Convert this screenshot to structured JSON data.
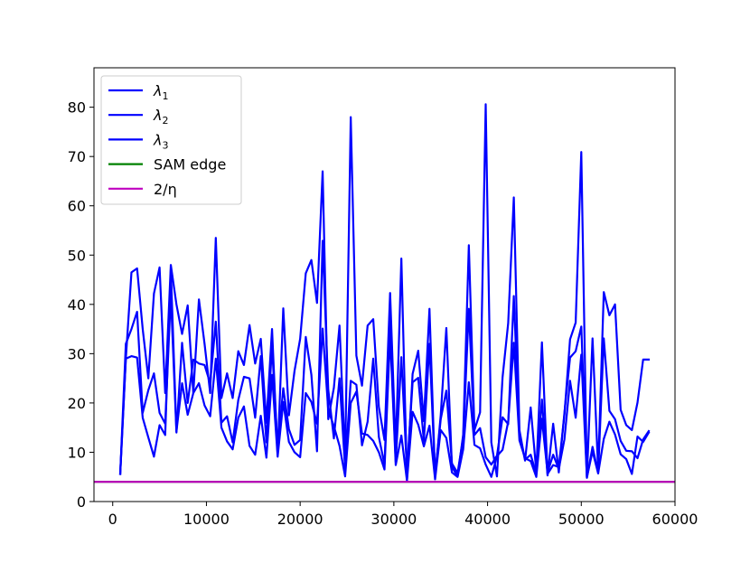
{
  "chart_data": {
    "type": "line",
    "xlim": [
      -2000,
      60000
    ],
    "ylim": [
      0,
      88
    ],
    "xticks": [
      0,
      10000,
      20000,
      30000,
      40000,
      50000,
      60000
    ],
    "xtick_labels": [
      "0",
      "10000",
      "20000",
      "30000",
      "40000",
      "50000",
      "60000"
    ],
    "yticks": [
      0,
      10,
      20,
      30,
      40,
      50,
      60,
      70,
      80
    ],
    "ytick_labels": [
      "0",
      "10",
      "20",
      "30",
      "40",
      "50",
      "60",
      "70",
      "80"
    ],
    "grid": false,
    "legend_position": "top-left",
    "legend": [
      {
        "base": "λ",
        "sub": "1",
        "color": "#0000ff"
      },
      {
        "base": "λ",
        "sub": "2",
        "color": "#0000ff"
      },
      {
        "base": "λ",
        "sub": "3",
        "color": "#0000ff"
      },
      {
        "base": "SAM edge",
        "sub": "",
        "color": "#008000"
      },
      {
        "base": "2/η",
        "sub": "",
        "color": "#bf00bf"
      }
    ],
    "x": [
      800,
      1400,
      2000,
      2600,
      3200,
      3800,
      4400,
      5000,
      5600,
      6200,
      6800,
      7400,
      8000,
      8600,
      9200,
      9800,
      10400,
      11000,
      11600,
      12200,
      12800,
      13400,
      14000,
      14600,
      15200,
      15800,
      16400,
      17000,
      17600,
      18200,
      18800,
      19400,
      20000,
      20600,
      21200,
      21800,
      22400,
      23000,
      23600,
      24200,
      24800,
      25400,
      26000,
      26600,
      27200,
      27800,
      28400,
      29000,
      29600,
      30200,
      30800,
      31400,
      32000,
      32600,
      33200,
      33800,
      34400,
      35000,
      35600,
      36200,
      36800,
      37400,
      38000,
      38600,
      39200,
      39800,
      40400,
      41000,
      41600,
      42200,
      42800,
      43400,
      44000,
      44600,
      45200,
      45800,
      46400,
      47000,
      47600,
      48200,
      48800,
      49400,
      50000,
      50600,
      51200,
      51800,
      52400,
      53000,
      53600,
      54200,
      54800,
      55400,
      56000,
      56600,
      57200
    ],
    "series": [
      {
        "name": "",
        "color": "#0000ff",
        "values": [
          5.6,
          29,
          46.5,
          47.3,
          35,
          25,
          42.2,
          47.5,
          22,
          48,
          40,
          34,
          39.8,
          22,
          41,
          32,
          22,
          53.5,
          21,
          26,
          21,
          30.5,
          27.7,
          35.8,
          28,
          33,
          16,
          35,
          9.4,
          39.2,
          17.5,
          26.5,
          33,
          46.3,
          49,
          40.3,
          67,
          16.7,
          23.1,
          35.7,
          8.6,
          78,
          29.6,
          23.5,
          35.7,
          37,
          19.2,
          12.5,
          42.3,
          10.5,
          49.3,
          4.5,
          25.9,
          30.6,
          16.3,
          39.1,
          5,
          17.5,
          35.2,
          7,
          5.1,
          13.6,
          52,
          14.5,
          18.1,
          80.6,
          12,
          5.1,
          25.2,
          36.2,
          61.7,
          14.5,
          8.3,
          19.1,
          6.1,
          32.3,
          5.6,
          7.4,
          7,
          17.6,
          32.9,
          36.3,
          70.9,
          5,
          33.1,
          6.4,
          42.5,
          37.8,
          40,
          18.6,
          15.5,
          14.5,
          20.1,
          28.8,
          28.8
        ]
      },
      {
        "name": "",
        "color": "#0000ff",
        "values": [
          5.6,
          32,
          35,
          38.5,
          18,
          22.6,
          26,
          18,
          15.8,
          42,
          14,
          32.2,
          20,
          28.8,
          28,
          27.7,
          24,
          36.5,
          16,
          17.3,
          12,
          20.6,
          25.3,
          25,
          17,
          29.5,
          12,
          31.6,
          10.8,
          23,
          14.7,
          11.5,
          12.5,
          33.4,
          25.7,
          10.2,
          52.9,
          22.7,
          12.8,
          25,
          6.8,
          24.5,
          23.7,
          11.4,
          16.2,
          29,
          13.1,
          7.5,
          36.6,
          8,
          29.3,
          6.2,
          24.2,
          25.1,
          12.3,
          32,
          5.3,
          16.7,
          22.5,
          7.7,
          5.8,
          13,
          39.1,
          13.5,
          14.9,
          9,
          7.5,
          9.3,
          17.1,
          15.7,
          41.7,
          13.4,
          8.5,
          9.5,
          5.6,
          20.7,
          5.3,
          15.8,
          5.9,
          18,
          29.2,
          30.5,
          35.5,
          4.8,
          11.1,
          5.8,
          33.1,
          18.4,
          16.7,
          12.3,
          10.3,
          10.2,
          8.8,
          12.6,
          14.3
        ]
      },
      {
        "name": "",
        "color": "#0000ff",
        "values": [
          5.6,
          29,
          29.5,
          29.2,
          17,
          13,
          9.1,
          15.5,
          13.5,
          47,
          14.2,
          24,
          17.6,
          22,
          24,
          19.5,
          17.3,
          29,
          15,
          12.2,
          10.6,
          17,
          19.3,
          11.3,
          9.5,
          17.4,
          8.9,
          25.7,
          9.1,
          20.2,
          12.1,
          10,
          9,
          22,
          20.2,
          15.8,
          35.1,
          18.5,
          15.3,
          11.3,
          5.1,
          20,
          22.3,
          13.8,
          13.5,
          12.3,
          10,
          6.5,
          33.8,
          7.4,
          13.4,
          4.2,
          18.2,
          15.6,
          11.2,
          15.4,
          4.5,
          14.5,
          12.9,
          5.9,
          5,
          10.6,
          24.2,
          11.5,
          10.8,
          7.5,
          5,
          9.2,
          10.5,
          16.2,
          32.2,
          12.4,
          8.8,
          8.2,
          5,
          16.8,
          5.9,
          9.5,
          6.6,
          12.6,
          24.5,
          17,
          29.8,
          4.9,
          10.2,
          5.7,
          12.7,
          16.2,
          13.6,
          9.6,
          8.6,
          5.6,
          13.2,
          12.1,
          14
        ]
      }
    ],
    "reference_lines": [
      {
        "name": "SAM edge",
        "y": 4,
        "color": "#008000"
      },
      {
        "name": "2/η",
        "y": 4,
        "color": "#bf00bf"
      }
    ]
  }
}
